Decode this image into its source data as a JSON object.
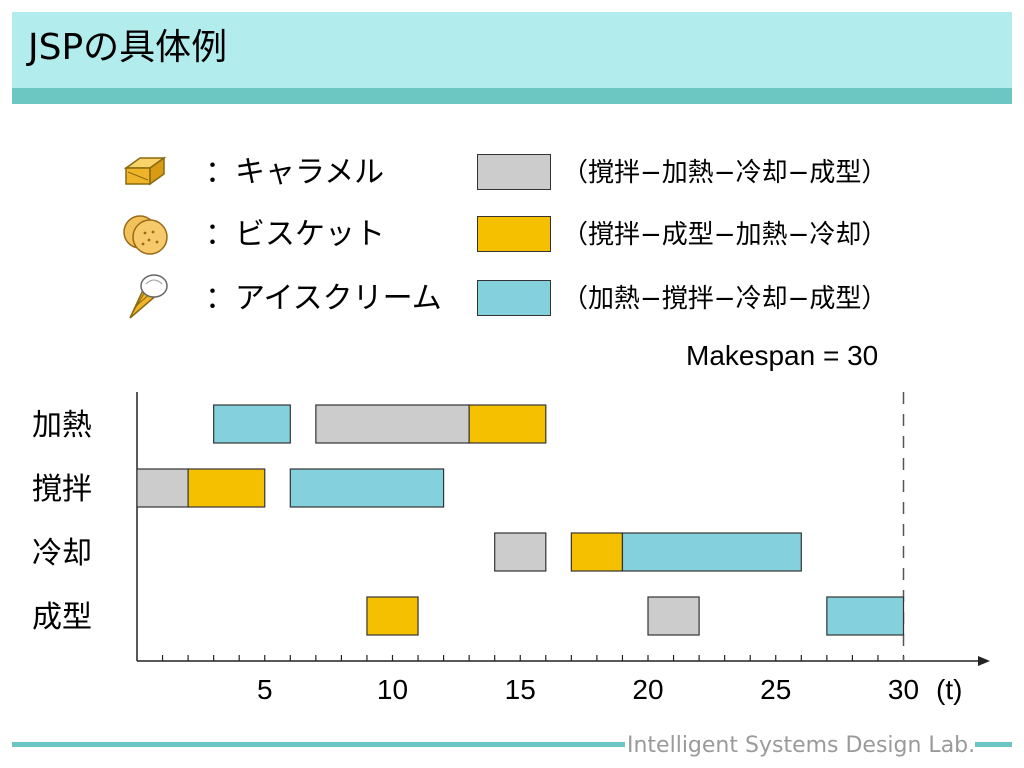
{
  "title": "JSPの具体例",
  "legend": [
    {
      "icon": "caramel-box-icon",
      "label": "：キャラメル",
      "sequence": "（撹拌−加熱−冷却−成型）",
      "color": "#cccccc"
    },
    {
      "icon": "biscuit-icon",
      "label": "：ビスケット",
      "sequence": "（撹拌−成型−加熱−冷却）",
      "color": "#f5c000"
    },
    {
      "icon": "ice-cream-cone-icon",
      "label": "：アイスクリーム",
      "sequence": "（加熱−撹拌−冷却−成型）",
      "color": "#85d0dd"
    }
  ],
  "makespan_label": "Makespan = 30",
  "chart_data": {
    "type": "gantt",
    "machines": [
      "加熱",
      "撹拌",
      "冷却",
      "成型"
    ],
    "x_ticks": [
      5,
      10,
      15,
      20,
      25,
      30
    ],
    "x_unit": "(t)",
    "xlim": [
      0,
      30
    ],
    "makespan": 30,
    "tasks": [
      {
        "machine": "加熱",
        "job": "アイスクリーム",
        "start": 3,
        "end": 6
      },
      {
        "machine": "加熱",
        "job": "キャラメル",
        "start": 7,
        "end": 13
      },
      {
        "machine": "加熱",
        "job": "ビスケット",
        "start": 13,
        "end": 16
      },
      {
        "machine": "撹拌",
        "job": "キャラメル",
        "start": 0,
        "end": 2
      },
      {
        "machine": "撹拌",
        "job": "ビスケット",
        "start": 2,
        "end": 5
      },
      {
        "machine": "撹拌",
        "job": "アイスクリーム",
        "start": 6,
        "end": 12
      },
      {
        "machine": "冷却",
        "job": "キャラメル",
        "start": 14,
        "end": 16
      },
      {
        "machine": "冷却",
        "job": "ビスケット",
        "start": 17,
        "end": 19
      },
      {
        "machine": "冷却",
        "job": "アイスクリーム",
        "start": 19,
        "end": 26
      },
      {
        "machine": "成型",
        "job": "ビスケット",
        "start": 9,
        "end": 11
      },
      {
        "machine": "成型",
        "job": "キャラメル",
        "start": 20,
        "end": 22
      },
      {
        "machine": "成型",
        "job": "アイスクリーム",
        "start": 27,
        "end": 30
      }
    ]
  },
  "job_colors": {
    "キャラメル": "#cccccc",
    "ビスケット": "#f5c000",
    "アイスクリーム": "#85d0dd"
  },
  "footer": "Intelligent Systems Design Lab."
}
